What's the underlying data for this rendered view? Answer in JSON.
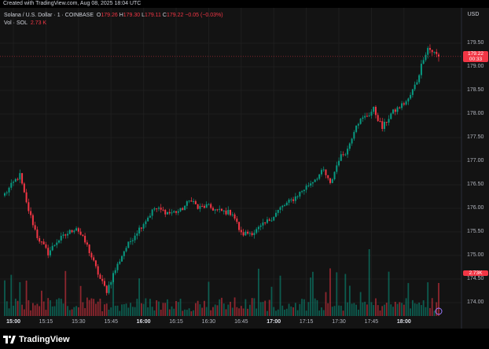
{
  "header": {
    "created_text": "Created with TradingView.com, Aug 08, 2025 18:04 UTC"
  },
  "legend": {
    "symbol": "Solana / U.S. Dollar · 1 · COINBASE",
    "o_label": "O",
    "o_value": "179.26",
    "h_label": "H",
    "h_value": "179.30",
    "l_label": "L",
    "l_value": "179.11",
    "c_label": "C",
    "c_value": "179.22",
    "change": "−0.05 (−0.03%)",
    "vol_label": "Vol · SOL",
    "vol_value": "2.73 K"
  },
  "currency": "USD",
  "price_tag": {
    "price": "179.22",
    "countdown": "00:33"
  },
  "volume_tag": "2.73K",
  "branding": "TradingView",
  "colors": {
    "up": "#089981",
    "down": "#f23645",
    "background": "#131313",
    "grid": "#1e1e1e"
  },
  "chart_data": {
    "type": "candlestick",
    "interval": "1 minute",
    "y_ticks": [
      "179.50",
      "179.00",
      "178.50",
      "178.00",
      "177.50",
      "177.00",
      "176.50",
      "176.00",
      "175.50",
      "175.00",
      "174.50",
      "174.00"
    ],
    "x_ticks": [
      "15:00",
      "15:15",
      "15:30",
      "15:45",
      "16:00",
      "16:15",
      "16:30",
      "16:45",
      "17:00",
      "17:15",
      "17:30",
      "17:45",
      "18:00"
    ],
    "bold_ticks": [
      "15:00",
      "16:00",
      "17:00",
      "18:00"
    ],
    "ylim": [
      173.7,
      179.8
    ],
    "anchors": [
      [
        0,
        176.3
      ],
      [
        5,
        176.6
      ],
      [
        7,
        176.7
      ],
      [
        10,
        176.1
      ],
      [
        15,
        175.4
      ],
      [
        20,
        175.05
      ],
      [
        24,
        175.3
      ],
      [
        30,
        175.5
      ],
      [
        33,
        175.6
      ],
      [
        38,
        175.2
      ],
      [
        44,
        174.5
      ],
      [
        47,
        174.25
      ],
      [
        50,
        174.6
      ],
      [
        55,
        175.1
      ],
      [
        60,
        175.45
      ],
      [
        65,
        175.75
      ],
      [
        69,
        176.0
      ],
      [
        76,
        175.9
      ],
      [
        81,
        175.95
      ],
      [
        86,
        176.2
      ],
      [
        89,
        176.0
      ],
      [
        93,
        176.05
      ],
      [
        98,
        175.95
      ],
      [
        105,
        175.9
      ],
      [
        109,
        175.45
      ],
      [
        115,
        175.5
      ],
      [
        118,
        175.6
      ],
      [
        123,
        175.8
      ],
      [
        127,
        176.0
      ],
      [
        133,
        176.2
      ],
      [
        140,
        176.5
      ],
      [
        147,
        176.8
      ],
      [
        150,
        176.5
      ],
      [
        154,
        177.05
      ],
      [
        158,
        177.25
      ],
      [
        162,
        177.8
      ],
      [
        168,
        178.0
      ],
      [
        170,
        178.1
      ],
      [
        174,
        177.7
      ],
      [
        178,
        178.0
      ],
      [
        182,
        178.15
      ],
      [
        186,
        178.3
      ],
      [
        190,
        178.7
      ],
      [
        193,
        179.2
      ],
      [
        195,
        179.4
      ],
      [
        200,
        179.22
      ]
    ],
    "last": {
      "open": 179.26,
      "high": 179.3,
      "low": 179.11,
      "close": 179.22
    },
    "volume_last": 2730
  }
}
